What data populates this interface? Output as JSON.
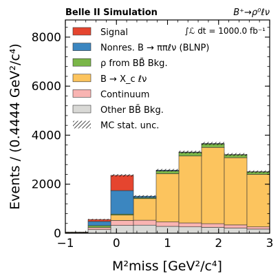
{
  "chart_data": {
    "type": "bar",
    "stacked": true,
    "histogram": true,
    "header_left": "Belle II Simulation",
    "header_right": "B⁺→ρ⁰ℓν",
    "luminosity_label": "∫ℒ dt = 1000.0 fb⁻¹",
    "xlabel": "M²miss  [GeV²/c⁴]",
    "ylabel": "Events / (0.4444 GeV²/c⁴)",
    "xlim": [
      -1,
      3
    ],
    "ylim": [
      0,
      8700
    ],
    "x_ticks": [
      -1,
      0,
      1,
      2,
      3
    ],
    "x_tick_labels": [
      "−1",
      "0",
      "1",
      "2",
      "3"
    ],
    "y_ticks": [
      0,
      2000,
      4000,
      6000,
      8000
    ],
    "y_tick_labels": [
      "0",
      "2000",
      "4000",
      "6000",
      "8000"
    ],
    "bin_edges": [
      -1.0,
      -0.5556,
      -0.1111,
      0.3333,
      0.7778,
      1.2222,
      1.6667,
      2.1111,
      2.5556,
      3.0
    ],
    "legend_position": "top-left",
    "series": [
      {
        "name": "Other BB̄ Bkg.",
        "color": "#d9d9d6",
        "values": [
          20,
          150,
          320,
          330,
          280,
          260,
          240,
          210,
          170
        ]
      },
      {
        "name": "Continuum",
        "color": "#f9b4b2",
        "values": [
          10,
          80,
          200,
          200,
          180,
          160,
          150,
          130,
          90
        ]
      },
      {
        "name": "B → X_c ℓν",
        "color": "#fcc45e",
        "values": [
          20,
          0,
          220,
          880,
          1970,
          2730,
          3110,
          2740,
          2140
        ]
      },
      {
        "name": "ρ from BB̄ Bkg.",
        "color": "#7ab648",
        "values": [
          0,
          80,
          40,
          40,
          110,
          140,
          140,
          120,
          100
        ]
      },
      {
        "name": "Nonres. B → ππℓν (BLNP)",
        "color": "#3b86c0",
        "values": [
          0,
          170,
          960,
          60,
          30,
          20,
          20,
          10,
          10
        ]
      },
      {
        "name": "Signal",
        "color": "#e5452f",
        "values": [
          0,
          80,
          620,
          0,
          0,
          0,
          0,
          0,
          0
        ]
      }
    ],
    "uncertainty_label": "MC stat. unc."
  }
}
